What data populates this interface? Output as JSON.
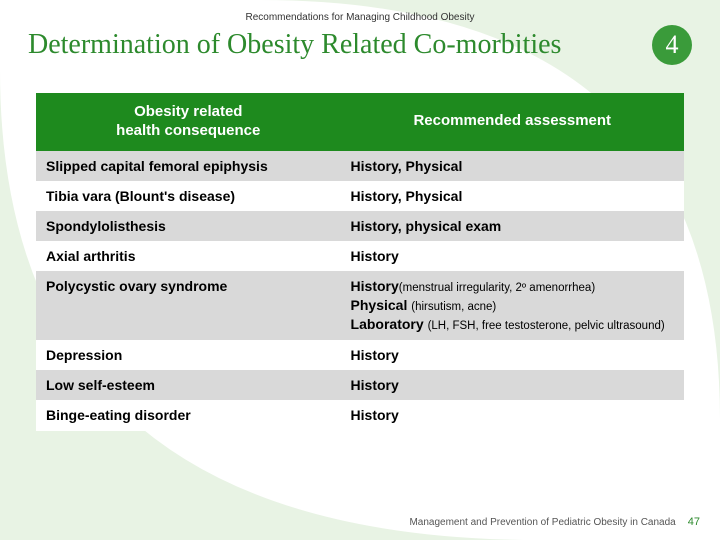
{
  "header": {
    "suptitle": "Recommendations for Managing Childhood Obesity",
    "title": "Determination of Obesity Related Co-morbities",
    "step_number": "4"
  },
  "table": {
    "columns": [
      "Obesity related\nhealth consequence",
      "Recommended assessment"
    ],
    "col_widths_pct": [
      47,
      53
    ],
    "header_bg": "#1e8a1e",
    "header_color": "#ffffff",
    "row_shade_bg": "#d9d9d9",
    "row_plain_bg": "#ffffff",
    "rows": [
      {
        "shade": true,
        "consequence": "Slipped capital femoral epiphysis",
        "assessment": [
          {
            "b": "History, Physical"
          }
        ]
      },
      {
        "shade": false,
        "consequence": "Tibia vara (Blount's disease)",
        "assessment": [
          {
            "b": "History, Physical"
          }
        ]
      },
      {
        "shade": true,
        "consequence": "Spondylolisthesis",
        "assessment": [
          {
            "b": "History, physical exam"
          }
        ]
      },
      {
        "shade": false,
        "consequence": "Axial arthritis",
        "assessment": [
          {
            "b": "History"
          }
        ]
      },
      {
        "shade": true,
        "consequence": "Polycystic ovary syndrome",
        "assessment": [
          {
            "b": "History"
          },
          {
            "s": "(menstrual irregularity, 2º amenorrhea)"
          },
          {
            "br": true
          },
          {
            "b": "Physical "
          },
          {
            "s": "(hirsutism, acne)"
          },
          {
            "br": true
          },
          {
            "b": "Laboratory "
          },
          {
            "s": "(LH, FSH, free testosterone, pelvic ultrasound)"
          }
        ]
      },
      {
        "shade": false,
        "consequence": "Depression",
        "assessment": [
          {
            "b": "History"
          }
        ]
      },
      {
        "shade": true,
        "consequence": "Low self-esteem",
        "assessment": [
          {
            "b": "History"
          }
        ]
      },
      {
        "shade": false,
        "consequence": "Binge-eating disorder",
        "assessment": [
          {
            "b": "History"
          }
        ]
      }
    ]
  },
  "footer": {
    "source": "Management and Prevention of Pediatric Obesity in Canada",
    "page": "47"
  },
  "style": {
    "title_color": "#2d8a2d",
    "badge_bg": "#3a9b3a",
    "bg_curve_color": "#e8f3e4",
    "body_font": "Arial",
    "title_font": "Georgia",
    "title_fontsize_pt": 21,
    "header_fontsize_pt": 11,
    "cell_fontsize_pt": 10.5,
    "small_fontsize_pt": 8.5,
    "footer_fontsize_pt": 7.5
  }
}
